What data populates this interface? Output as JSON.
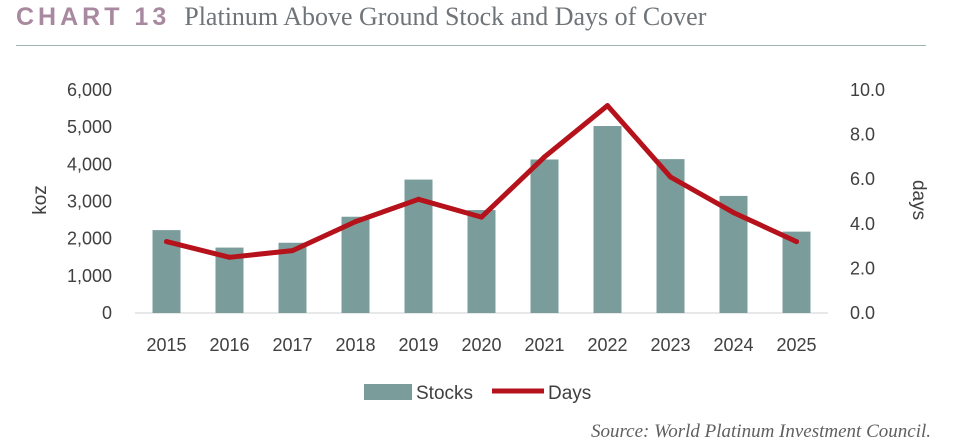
{
  "header": {
    "label": "CHART 13",
    "title": "Platinum Above Ground Stock and Days of Cover"
  },
  "source": "Source: World Platinum Investment Council.",
  "colors": {
    "bar": "#7a9c9b",
    "line": "#b5121b",
    "label": "#a8899f",
    "title": "#6f7478"
  },
  "chart_data": {
    "type": "bar",
    "categories": [
      "2015",
      "2016",
      "2017",
      "2018",
      "2019",
      "2020",
      "2021",
      "2022",
      "2023",
      "2024",
      "2025"
    ],
    "series": [
      {
        "name": "Stocks",
        "type": "bar",
        "axis": "left",
        "values": [
          2230,
          1760,
          1890,
          2590,
          3590,
          2770,
          4130,
          5030,
          4140,
          3150,
          2190
        ]
      },
      {
        "name": "Days",
        "type": "line",
        "axis": "right",
        "values": [
          3.2,
          2.5,
          2.8,
          4.1,
          5.1,
          4.3,
          7.0,
          9.3,
          6.1,
          4.5,
          3.2
        ]
      }
    ],
    "ylabel": "koz",
    "y2label": "days",
    "ylim": [
      0,
      6000
    ],
    "y2lim": [
      0,
      10
    ],
    "yticks": [
      "0",
      "1,000",
      "2,000",
      "3,000",
      "4,000",
      "5,000",
      "6,000"
    ],
    "y2ticks": [
      "0.0",
      "2.0",
      "4.0",
      "6.0",
      "8.0",
      "10.0"
    ],
    "grid": false,
    "legend_position": "bottom"
  }
}
